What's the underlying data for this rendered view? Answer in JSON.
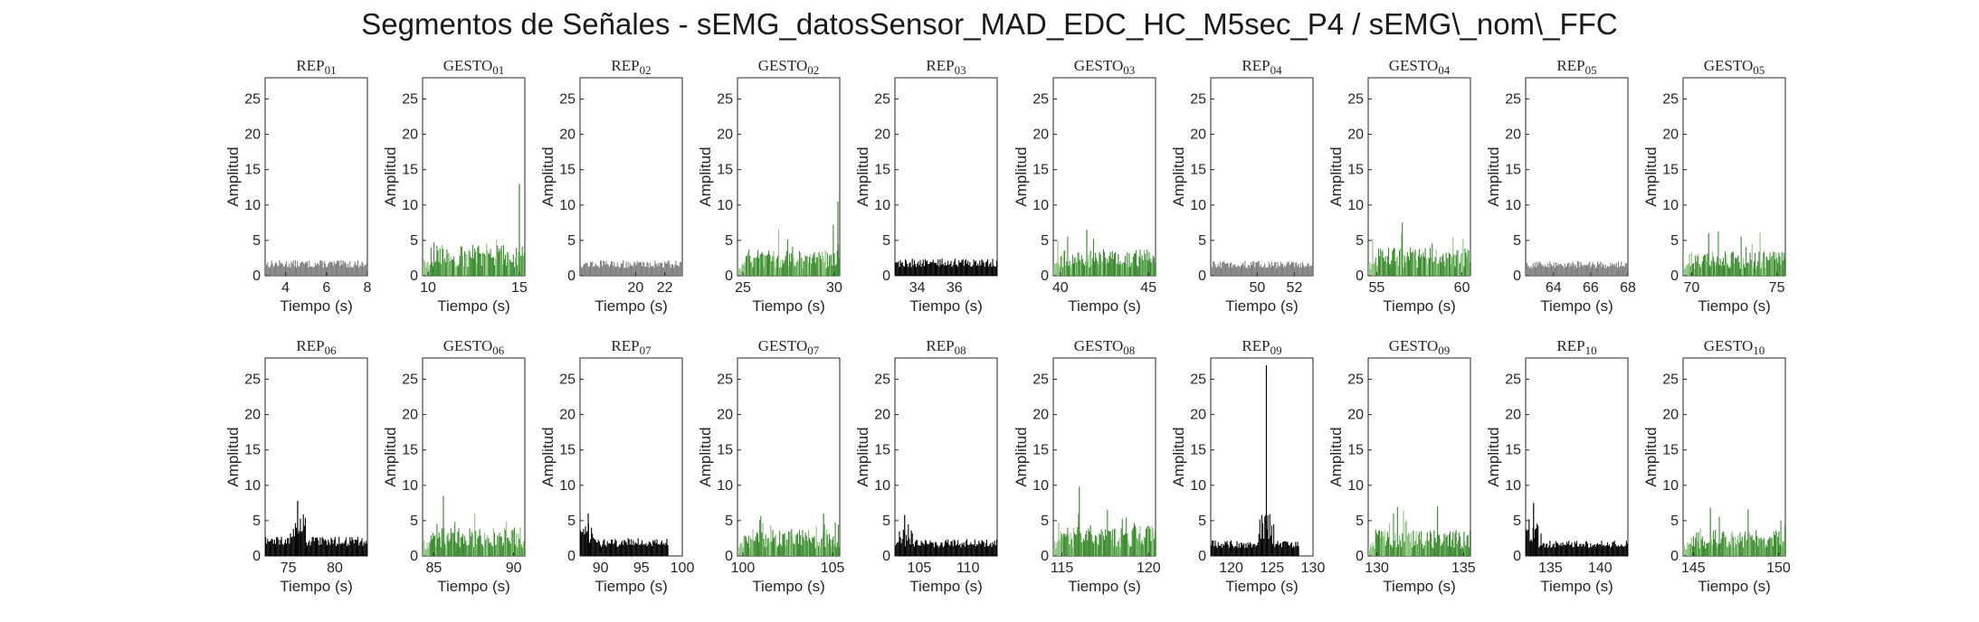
{
  "title": "Segmentos de Señales - sEMG_datosSensor_MAD_EDC_HC_M5sec_P4 / sEMG\\_nom\\_FFC",
  "colors": {
    "rep": "#000000",
    "rep_gray": "#7f7f7f",
    "gesto": "#3a8a2e",
    "gesto_light": "#8ac27e"
  },
  "chart_data": [
    {
      "type": "bar",
      "title": "REP_01",
      "kind": "rep",
      "xlabel": "Tiempo (s)",
      "ylabel": "Amplitud",
      "xlim": [
        3,
        8
      ],
      "ylim": [
        0,
        28
      ],
      "xticks": [
        4,
        6,
        8
      ],
      "yticks": [
        0,
        5,
        10,
        15,
        20,
        25
      ],
      "series": [
        {
          "name": "",
          "level": 2.0,
          "peak": 2.9,
          "style": "gray"
        }
      ]
    },
    {
      "type": "bar",
      "title": "GESTO_01",
      "kind": "gesto",
      "xlabel": "Tiempo (s)",
      "ylabel": "Amplitud",
      "xlim": [
        9.7,
        15.3
      ],
      "ylim": [
        0,
        28
      ],
      "xticks": [
        10,
        15
      ],
      "yticks": [
        0,
        5,
        10,
        15,
        20,
        25
      ],
      "series": [
        {
          "name": "",
          "level": 3.5,
          "peak": 13.0,
          "peak_x": 15.0
        }
      ]
    },
    {
      "type": "bar",
      "title": "REP_02",
      "kind": "rep",
      "xlabel": "Tiempo (s)",
      "ylabel": "Amplitud",
      "xlim": [
        16.2,
        23.2
      ],
      "ylim": [
        0,
        28
      ],
      "xticks": [
        20,
        22
      ],
      "yticks": [
        0,
        5,
        10,
        15,
        20,
        25
      ],
      "series": [
        {
          "name": "",
          "level": 2.0,
          "peak": 2.8,
          "style": "gray"
        }
      ]
    },
    {
      "type": "bar",
      "title": "GESTO_02",
      "kind": "gesto",
      "xlabel": "Tiempo (s)",
      "ylabel": "Amplitud",
      "xlim": [
        24.7,
        30.3
      ],
      "ylim": [
        0,
        28
      ],
      "xticks": [
        25,
        30
      ],
      "yticks": [
        0,
        5,
        10,
        15,
        20,
        25
      ],
      "series": [
        {
          "name": "",
          "level": 3.0,
          "peak": 10.5,
          "peak_x": 30.2
        }
      ]
    },
    {
      "type": "bar",
      "title": "REP_03",
      "kind": "rep",
      "xlabel": "Tiempo (s)",
      "ylabel": "Amplitud",
      "xlim": [
        32.8,
        38.3
      ],
      "ylim": [
        0,
        28
      ],
      "xticks": [
        34,
        36
      ],
      "yticks": [
        0,
        5,
        10,
        15,
        20,
        25
      ],
      "series": [
        {
          "name": "",
          "level": 2.2,
          "peak": 3.5,
          "style": "black"
        }
      ]
    },
    {
      "type": "bar",
      "title": "GESTO_03",
      "kind": "gesto",
      "xlabel": "Tiempo (s)",
      "ylabel": "Amplitud",
      "xlim": [
        39.6,
        45.4
      ],
      "ylim": [
        0,
        28
      ],
      "xticks": [
        40,
        45
      ],
      "yticks": [
        0,
        5,
        10,
        15,
        20,
        25
      ],
      "series": [
        {
          "name": "",
          "level": 3.0,
          "peak": 6.5,
          "peak_x": 41.5
        }
      ]
    },
    {
      "type": "bar",
      "title": "REP_04",
      "kind": "rep",
      "xlabel": "Tiempo (s)",
      "ylabel": "Amplitud",
      "xlim": [
        47.5,
        53
      ],
      "ylim": [
        0,
        28
      ],
      "xticks": [
        50,
        52
      ],
      "yticks": [
        0,
        5,
        10,
        15,
        20,
        25
      ],
      "series": [
        {
          "name": "",
          "level": 1.9,
          "peak": 2.8,
          "style": "gray"
        }
      ]
    },
    {
      "type": "bar",
      "title": "GESTO_04",
      "kind": "gesto",
      "xlabel": "Tiempo (s)",
      "ylabel": "Amplitud",
      "xlim": [
        54.5,
        60.5
      ],
      "ylim": [
        0,
        28
      ],
      "xticks": [
        55,
        60
      ],
      "yticks": [
        0,
        5,
        10,
        15,
        20,
        25
      ],
      "series": [
        {
          "name": "",
          "level": 3.2,
          "peak": 7.5,
          "peak_x": 56.5
        }
      ]
    },
    {
      "type": "bar",
      "title": "REP_05",
      "kind": "rep",
      "xlabel": "Tiempo (s)",
      "ylabel": "Amplitud",
      "xlim": [
        62.5,
        68
      ],
      "ylim": [
        0,
        28
      ],
      "xticks": [
        64,
        66,
        68
      ],
      "yticks": [
        0,
        5,
        10,
        15,
        20,
        25
      ],
      "series": [
        {
          "name": "",
          "level": 1.9,
          "peak": 2.6,
          "style": "gray"
        }
      ]
    },
    {
      "type": "bar",
      "title": "GESTO_05",
      "kind": "gesto",
      "xlabel": "Tiempo (s)",
      "ylabel": "Amplitud",
      "xlim": [
        69.5,
        75.5
      ],
      "ylim": [
        0,
        28
      ],
      "xticks": [
        70,
        75
      ],
      "yticks": [
        0,
        5,
        10,
        15,
        20,
        25
      ],
      "series": [
        {
          "name": "",
          "level": 2.8,
          "peak": 6.0,
          "peak_x": 71.0
        }
      ]
    },
    {
      "type": "bar",
      "title": "REP_06",
      "kind": "rep",
      "xlabel": "Tiempo (s)",
      "ylabel": "Amplitud",
      "xlim": [
        72.5,
        83.5
      ],
      "ylim": [
        0,
        28
      ],
      "xticks": [
        75,
        80
      ],
      "yticks": [
        0,
        5,
        10,
        15,
        20,
        25
      ],
      "series": [
        {
          "name": "",
          "level": 2.5,
          "peak": 7.8,
          "peak_x": 76.0,
          "style": "black"
        }
      ]
    },
    {
      "type": "bar",
      "title": "GESTO_06",
      "kind": "gesto",
      "xlabel": "Tiempo (s)",
      "ylabel": "Amplitud",
      "xlim": [
        84.3,
        90.7
      ],
      "ylim": [
        0,
        28
      ],
      "xticks": [
        85,
        90
      ],
      "yticks": [
        0,
        5,
        10,
        15,
        20,
        25
      ],
      "series": [
        {
          "name": "",
          "level": 3.3,
          "peak": 8.5,
          "peak_x": 85.6
        }
      ]
    },
    {
      "type": "bar",
      "title": "REP_07",
      "kind": "rep",
      "xlabel": "Tiempo (s)",
      "ylabel": "Amplitud",
      "xlim": [
        87.5,
        100
      ],
      "ylim": [
        0,
        28
      ],
      "xticks": [
        90,
        95,
        100
      ],
      "yticks": [
        0,
        5,
        10,
        15,
        20,
        25
      ],
      "series": [
        {
          "name": "",
          "level": 2.3,
          "peak": 6.0,
          "peak_x": 88.5,
          "end": 98.3,
          "style": "black"
        }
      ]
    },
    {
      "type": "bar",
      "title": "GESTO_07",
      "kind": "gesto",
      "xlabel": "Tiempo (s)",
      "ylabel": "Amplitud",
      "xlim": [
        99.7,
        105.4
      ],
      "ylim": [
        0,
        28
      ],
      "xticks": [
        100,
        105
      ],
      "yticks": [
        0,
        5,
        10,
        15,
        20,
        25
      ],
      "series": [
        {
          "name": "",
          "level": 3.0,
          "peak": 6.0,
          "peak_x": 104.5
        }
      ]
    },
    {
      "type": "bar",
      "title": "REP_08",
      "kind": "rep",
      "xlabel": "Tiempo (s)",
      "ylabel": "Amplitud",
      "xlim": [
        102.5,
        113
      ],
      "ylim": [
        0,
        28
      ],
      "xticks": [
        105,
        110
      ],
      "yticks": [
        0,
        5,
        10,
        15,
        20,
        25
      ],
      "series": [
        {
          "name": "",
          "level": 2.2,
          "peak": 5.8,
          "peak_x": 103.5,
          "style": "black"
        }
      ]
    },
    {
      "type": "bar",
      "title": "GESTO_08",
      "kind": "gesto",
      "xlabel": "Tiempo (s)",
      "ylabel": "Amplitud",
      "xlim": [
        114.5,
        120.4
      ],
      "ylim": [
        0,
        28
      ],
      "xticks": [
        115,
        120
      ],
      "yticks": [
        0,
        5,
        10,
        15,
        20,
        25
      ],
      "series": [
        {
          "name": "",
          "level": 3.5,
          "peak": 9.8,
          "peak_x": 116.0
        }
      ]
    },
    {
      "type": "bar",
      "title": "REP_09",
      "kind": "rep",
      "xlabel": "Tiempo (s)",
      "ylabel": "Amplitud",
      "xlim": [
        117.5,
        130
      ],
      "ylim": [
        0,
        28
      ],
      "xticks": [
        120,
        125,
        130
      ],
      "yticks": [
        0,
        5,
        10,
        15,
        20,
        25
      ],
      "series": [
        {
          "name": "",
          "level": 2.0,
          "peak": 27.0,
          "peak_x": 124.3,
          "end": 128.3,
          "style": "black"
        }
      ]
    },
    {
      "type": "bar",
      "title": "GESTO_09",
      "kind": "gesto",
      "xlabel": "Tiempo (s)",
      "ylabel": "Amplitud",
      "xlim": [
        129.5,
        135.4
      ],
      "ylim": [
        0,
        28
      ],
      "xticks": [
        130,
        135
      ],
      "yticks": [
        0,
        5,
        10,
        15,
        20,
        25
      ],
      "series": [
        {
          "name": "",
          "level": 3.0,
          "peak": 7.0,
          "peak_x": 133.5
        }
      ]
    },
    {
      "type": "bar",
      "title": "REP_10",
      "kind": "rep",
      "xlabel": "Tiempo (s)",
      "ylabel": "Amplitud",
      "xlim": [
        132.5,
        142.8
      ],
      "ylim": [
        0,
        28
      ],
      "xticks": [
        135,
        140
      ],
      "yticks": [
        0,
        5,
        10,
        15,
        20,
        25
      ],
      "series": [
        {
          "name": "",
          "level": 2.0,
          "peak": 7.5,
          "peak_x": 133.3,
          "style": "black"
        }
      ]
    },
    {
      "type": "bar",
      "title": "GESTO_10",
      "kind": "gesto",
      "xlabel": "Tiempo (s)",
      "ylabel": "Amplitud",
      "xlim": [
        144.4,
        150.4
      ],
      "ylim": [
        0,
        28
      ],
      "xticks": [
        145,
        150
      ],
      "yticks": [
        0,
        5,
        10,
        15,
        20,
        25
      ],
      "series": [
        {
          "name": "",
          "level": 3.0,
          "peak": 6.8,
          "peak_x": 146.0
        }
      ]
    }
  ]
}
